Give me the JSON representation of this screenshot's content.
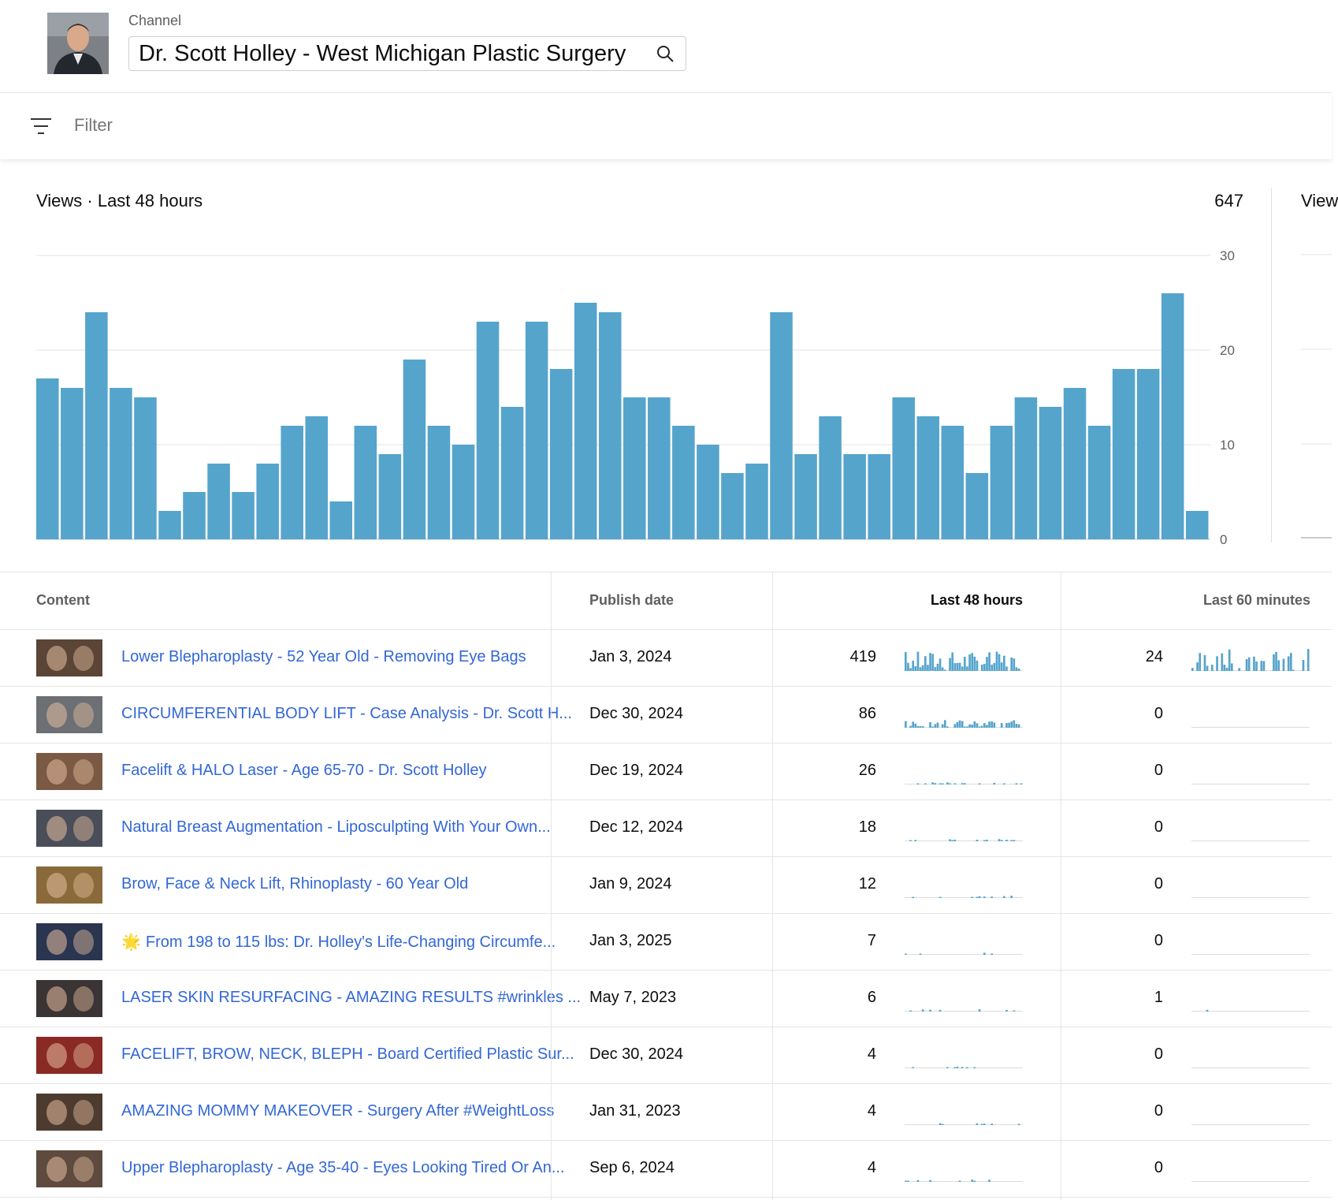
{
  "header": {
    "channel_caption": "Channel",
    "channel_name": "Dr. Scott Holley - West Michigan Plastic Surgery"
  },
  "filter": {
    "placeholder": "Filter"
  },
  "chart": {
    "title": "Views · Last 48 hours",
    "total": "647",
    "side_title": "View",
    "bar_color": "#55a4cc"
  },
  "chart_data": {
    "type": "bar",
    "title": "Views · Last 48 hours",
    "xlabel": "",
    "ylabel": "",
    "ylim": [
      0,
      30
    ],
    "yticks": [
      "0",
      "10",
      "20",
      "30"
    ],
    "grid": true,
    "values": [
      17,
      16,
      24,
      16,
      15,
      3,
      5,
      8,
      5,
      8,
      12,
      13,
      4,
      12,
      9,
      19,
      12,
      10,
      23,
      14,
      23,
      18,
      25,
      24,
      15,
      15,
      12,
      10,
      7,
      8,
      24,
      9,
      13,
      9,
      9,
      15,
      13,
      12,
      7,
      12,
      15,
      14,
      16,
      12,
      18,
      18,
      26,
      3
    ]
  },
  "table": {
    "headers": {
      "content": "Content",
      "publish_date": "Publish date",
      "last48": "Last 48 hours",
      "last60": "Last 60 minutes"
    },
    "rows": [
      {
        "title": "Lower Blepharoplasty - 52 Year Old - Removing Eye Bags",
        "date": "Jan 3, 2024",
        "views48": "419",
        "views60": "24",
        "thumb_color": "#5a4536"
      },
      {
        "title": "CIRCUMFERENTIAL BODY LIFT - Case Analysis - Dr. Scott H...",
        "date": "Dec 30, 2024",
        "views48": "86",
        "views60": "0",
        "thumb_color": "#6c6f74"
      },
      {
        "title": "Facelift & HALO Laser - Age 65-70 - Dr. Scott Holley",
        "date": "Dec 19, 2024",
        "views48": "26",
        "views60": "0",
        "thumb_color": "#7a5a44"
      },
      {
        "title": "Natural Breast Augmentation - Liposculpting With Your Own...",
        "date": "Dec 12, 2024",
        "views48": "18",
        "views60": "0",
        "thumb_color": "#4a4e58"
      },
      {
        "title": "Brow, Face & Neck Lift, Rhinoplasty - 60 Year Old",
        "date": "Jan 9, 2024",
        "views48": "12",
        "views60": "0",
        "thumb_color": "#8a6a3a"
      },
      {
        "title": "From 198 to 115 lbs: Dr. Holley's Life-Changing Circumfe...",
        "date": "Jan 3, 2025",
        "views48": "7",
        "views60": "0",
        "thumb_color": "#2a3550",
        "emoji": "🌟"
      },
      {
        "title": "LASER SKIN RESURFACING - AMAZING RESULTS #wrinkles ...",
        "date": "May 7, 2023",
        "views48": "6",
        "views60": "1",
        "thumb_color": "#3a3434"
      },
      {
        "title": "FACELIFT, BROW, NECK, BLEPH - Board Certified Plastic Sur...",
        "date": "Dec 30, 2024",
        "views48": "4",
        "views60": "0",
        "thumb_color": "#8a2a24"
      },
      {
        "title": "AMAZING MOMMY MAKEOVER - Surgery After #WeightLoss",
        "date": "Jan 31, 2023",
        "views48": "4",
        "views60": "0",
        "thumb_color": "#4d3b30"
      },
      {
        "title": "Upper Blepharoplasty - Age 35-40 - Eyes Looking Tired Or An...",
        "date": "Sep 6, 2024",
        "views48": "4",
        "views60": "0",
        "thumb_color": "#5e4a3e"
      }
    ]
  }
}
